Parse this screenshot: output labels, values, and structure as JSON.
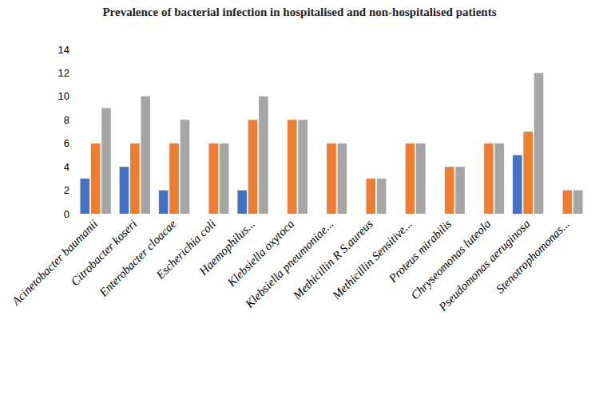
{
  "chart_data": {
    "type": "bar",
    "title": "Prevalence of bacterial infection in hospitalised and non-hospitalised patients",
    "categories": [
      "Acinetobacter baumanii",
      "Citrobacter koseri",
      "Enterobacter cloacae",
      "Escherichia coli",
      "Haemophilus...",
      "Klebsiella oxytoca",
      "Klebsiella pneumoniae...",
      "Methicillin R S.aureus",
      "Methicillin Sensitive...",
      "Proteus mirabilis",
      "Chryseomonas luteola",
      "Pseudomonas aeruginosa",
      "Stenotrophomonas..."
    ],
    "series": [
      {
        "color": "#4472c4",
        "values": [
          3,
          4,
          2,
          0,
          2,
          0,
          0,
          0,
          0,
          0,
          0,
          5,
          0
        ]
      },
      {
        "color": "#ed7d31",
        "values": [
          6,
          6,
          6,
          6,
          8,
          8,
          6,
          3,
          6,
          4,
          6,
          7,
          2
        ]
      },
      {
        "color": "#a5a5a5",
        "values": [
          9,
          10,
          8,
          6,
          10,
          8,
          6,
          3,
          6,
          4,
          6,
          12,
          2
        ]
      }
    ],
    "ylim": [
      0,
      14
    ],
    "yticks": [
      0,
      2,
      4,
      6,
      8,
      10,
      12,
      14
    ],
    "grid": false
  }
}
